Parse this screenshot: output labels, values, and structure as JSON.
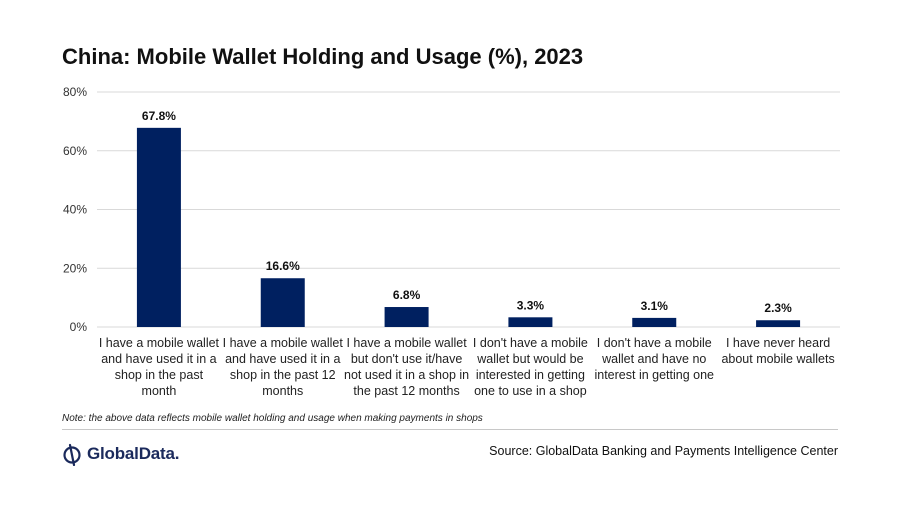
{
  "title": "China: Mobile Wallet Holding and Usage (%), 2023",
  "note": "Note: the above data reflects mobile wallet holding and usage when making payments in shops",
  "source": "Source: GlobalData Banking and Payments Intelligence Center",
  "logo": {
    "text": "GlobalData.",
    "icon": "globaldata-logo-icon"
  },
  "colors": {
    "bar": "#002060",
    "grid": "#d9d9d9",
    "axis": "#d9d9d9"
  },
  "chart_data": {
    "type": "bar",
    "title": "China: Mobile Wallet Holding and Usage (%), 2023",
    "categories": [
      [
        "I have a mobile wallet",
        "and have used it in a",
        "shop in the past",
        "month"
      ],
      [
        "I have a mobile wallet",
        "and have used it in a",
        "shop in the past 12",
        "months"
      ],
      [
        "I have a mobile wallet",
        "but don't use it/have",
        "not used it in a shop in",
        "the past 12 months"
      ],
      [
        "I don't have a mobile",
        "wallet but would be",
        "interested in getting",
        "one to use in a shop"
      ],
      [
        "I don't have a mobile",
        "wallet and have no",
        "interest in getting one"
      ],
      [
        "I have never heard",
        "about mobile wallets"
      ]
    ],
    "values": [
      67.8,
      16.6,
      6.8,
      3.3,
      3.1,
      2.3
    ],
    "data_labels": [
      "67.8%",
      "16.6%",
      "6.8%",
      "3.3%",
      "3.1%",
      "2.3%"
    ],
    "yticks": [
      0,
      20,
      40,
      60,
      80
    ],
    "ytick_labels": [
      "0%",
      "20%",
      "40%",
      "60%",
      "80%"
    ],
    "ylim": [
      0,
      80
    ],
    "xlabel": "",
    "ylabel": "",
    "grid": true,
    "legend": "none"
  }
}
